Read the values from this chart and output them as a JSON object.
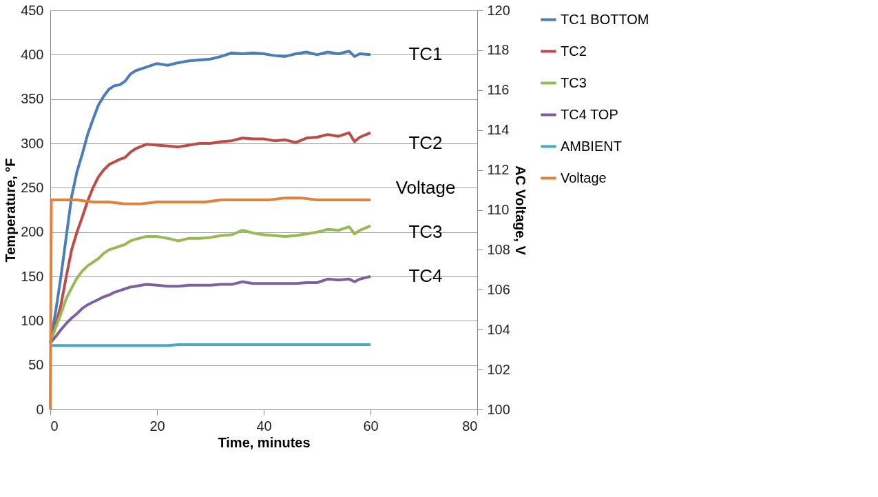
{
  "chart_data": {
    "type": "line",
    "xlabel": "Time, minutes",
    "ylabel": "Temperature, °F",
    "y2label": "AC Voltage, V",
    "x": [
      0,
      1,
      2,
      3,
      4,
      5,
      6,
      7,
      8,
      9,
      10,
      11,
      12,
      13,
      14,
      15,
      16,
      18,
      20,
      22,
      24,
      26,
      28,
      30,
      32,
      34,
      36,
      38,
      40,
      42,
      44,
      46,
      48,
      50,
      52,
      54,
      56,
      57,
      58,
      60
    ],
    "series": [
      {
        "name": "TC1 BOTTOM",
        "color": "#4a7ebb",
        "values": [
          75,
          110,
          150,
          195,
          240,
          268,
          288,
          310,
          327,
          343,
          353,
          361,
          365,
          366,
          370,
          378,
          382,
          386,
          390,
          388,
          391,
          393,
          394,
          395,
          398,
          402,
          401,
          402,
          401,
          399,
          398,
          401,
          403,
          400,
          403,
          401,
          404,
          398,
          401,
          400
        ]
      },
      {
        "name": "TC2",
        "color": "#be4b48",
        "values": [
          75,
          95,
          118,
          150,
          180,
          200,
          217,
          235,
          250,
          262,
          270,
          276,
          279,
          282,
          284,
          290,
          294,
          299,
          298,
          297,
          296,
          298,
          300,
          300,
          302,
          303,
          306,
          305,
          305,
          303,
          304,
          301,
          306,
          307,
          310,
          308,
          312,
          302,
          307,
          312
        ]
      },
      {
        "name": "TC3",
        "color": "#98b954",
        "values": [
          75,
          92,
          108,
          125,
          137,
          148,
          156,
          162,
          166,
          170,
          176,
          180,
          182,
          184,
          186,
          190,
          192,
          195,
          195,
          193,
          190,
          193,
          193,
          194,
          196,
          197,
          202,
          199,
          197,
          196,
          195,
          196,
          198,
          200,
          203,
          202,
          206,
          198,
          202,
          207
        ]
      },
      {
        "name": "TC4 TOP",
        "color": "#7d60a0",
        "values": [
          75,
          82,
          90,
          97,
          103,
          108,
          114,
          118,
          121,
          124,
          127,
          129,
          132,
          134,
          136,
          138,
          139,
          141,
          140,
          139,
          139,
          140,
          140,
          140,
          141,
          141,
          144,
          142,
          142,
          142,
          142,
          142,
          143,
          143,
          147,
          146,
          147,
          144,
          147,
          150
        ]
      },
      {
        "name": "AMBIENT",
        "color": "#46aac5",
        "values": [
          72,
          72,
          72,
          72,
          72,
          72,
          72,
          72,
          72,
          72,
          72,
          72,
          72,
          72,
          72,
          72,
          72,
          72,
          72,
          72,
          73,
          73,
          73,
          73,
          73,
          73,
          73,
          73,
          73,
          73,
          73,
          73,
          73,
          73,
          73,
          73,
          73,
          73,
          73,
          73
        ]
      },
      {
        "name": "Voltage",
        "color": "#e0823d",
        "axis": "y2",
        "x": [
          0,
          0.2,
          2,
          5,
          8,
          11,
          14,
          17,
          20,
          23,
          26,
          29,
          32,
          35,
          38,
          41,
          44,
          47,
          50,
          53,
          56,
          58,
          60
        ],
        "values": [
          100,
          110.5,
          110.5,
          110.5,
          110.4,
          110.4,
          110.3,
          110.3,
          110.4,
          110.4,
          110.4,
          110.4,
          110.5,
          110.5,
          110.5,
          110.5,
          110.6,
          110.6,
          110.5,
          110.5,
          110.5,
          110.5,
          110.5
        ]
      }
    ],
    "xlim": [
      0,
      80
    ],
    "xticks": [
      0,
      20,
      40,
      60,
      80
    ],
    "ylim": [
      0,
      450
    ],
    "yticks": [
      0,
      50,
      100,
      150,
      200,
      250,
      300,
      350,
      400,
      450
    ],
    "y2lim": [
      100,
      120
    ],
    "y2ticks": [
      100,
      102,
      104,
      106,
      108,
      110,
      112,
      114,
      116,
      118,
      120
    ],
    "annotations": [
      "TC1",
      "TC2",
      "Voltage",
      "TC3",
      "TC4"
    ],
    "grid": "y",
    "legend": "right"
  }
}
